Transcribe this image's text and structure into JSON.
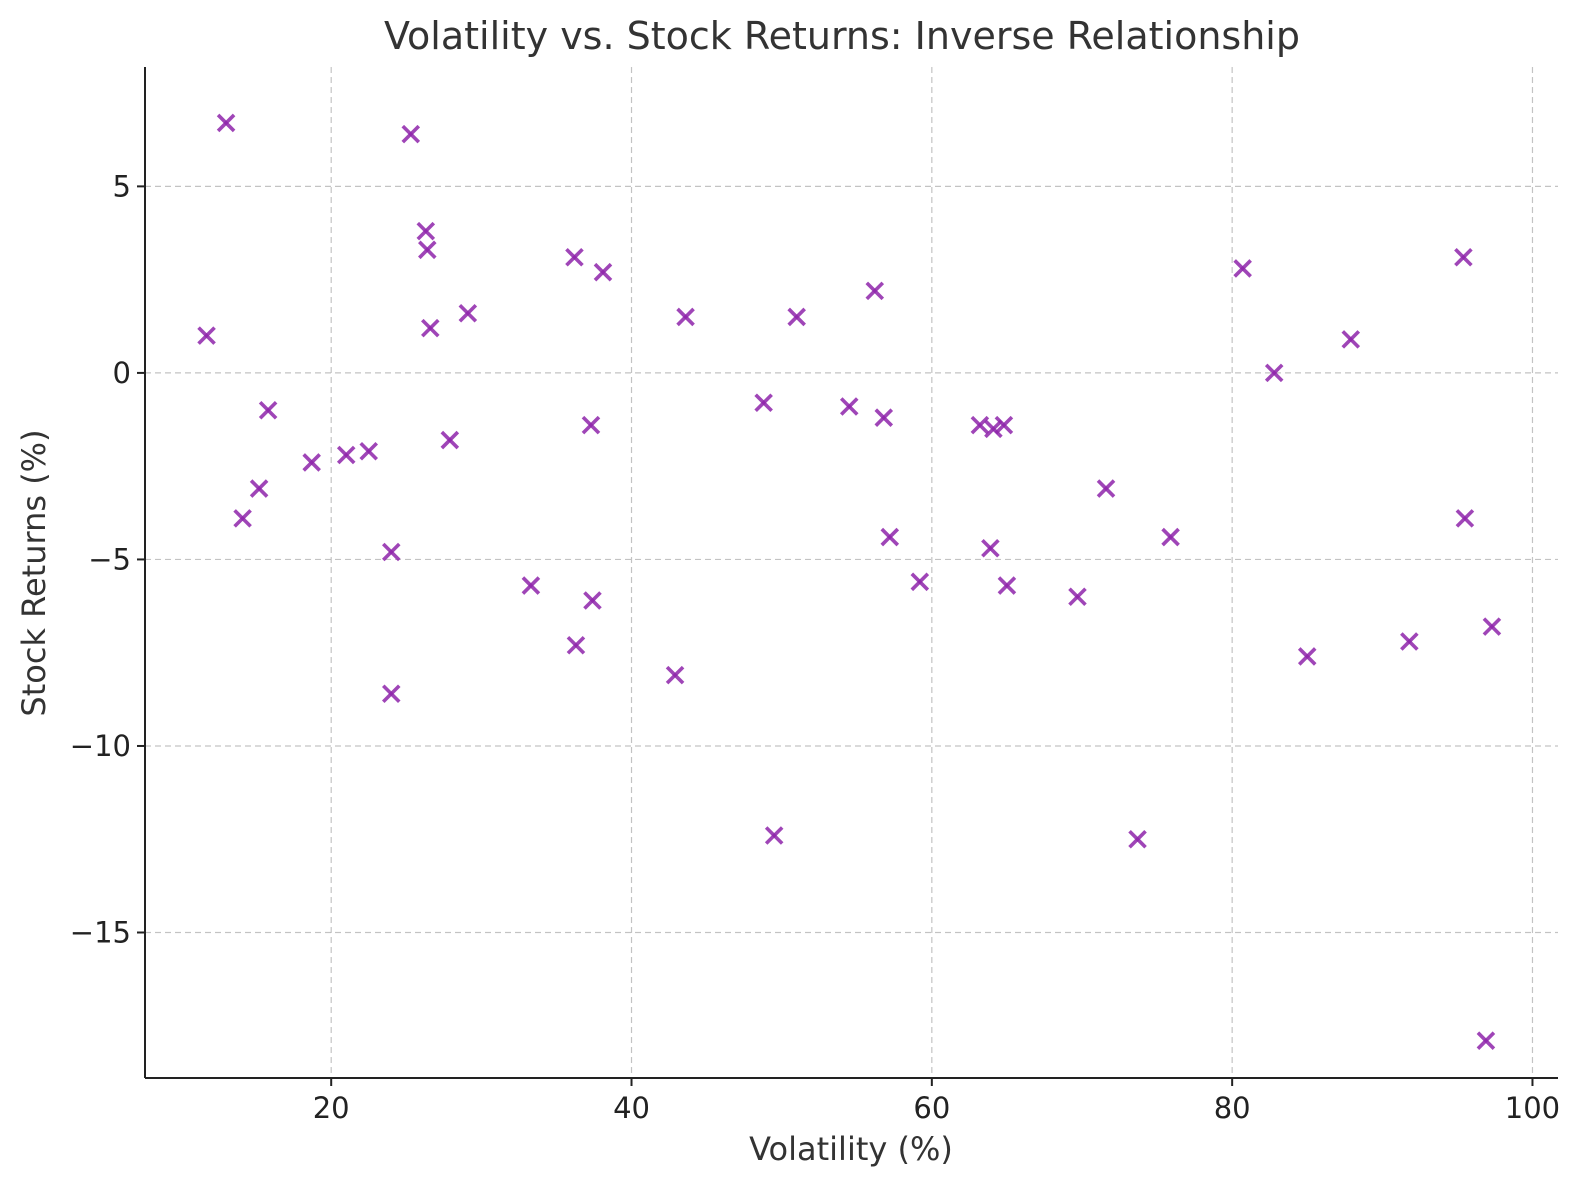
{
  "chart_data": {
    "type": "scatter",
    "title": "Volatility vs. Stock Returns: Inverse Relationship",
    "xlabel": "Volatility (%)",
    "ylabel": "Stock Returns (%)",
    "xlim": [
      7.6,
      101.7
    ],
    "ylim": [
      -18.9,
      8.2
    ],
    "xticks": [
      20,
      40,
      60,
      80,
      100
    ],
    "yticks": [
      5,
      0,
      -5,
      -10,
      -15
    ],
    "xtick_labels": [
      "20",
      "40",
      "60",
      "80",
      "100"
    ],
    "ytick_labels": [
      "5",
      "0",
      "−5",
      "−10",
      "−15"
    ],
    "grid": true,
    "marker": "x",
    "color": "#8e24aa",
    "series": [
      {
        "points": [
          [
            11.7,
            1.0
          ],
          [
            13.0,
            6.7
          ],
          [
            14.1,
            -3.9
          ],
          [
            15.2,
            -3.1
          ],
          [
            15.8,
            -1.0
          ],
          [
            18.7,
            -2.4
          ],
          [
            21.0,
            -2.2
          ],
          [
            22.5,
            -2.1
          ],
          [
            24.0,
            -4.8
          ],
          [
            24.0,
            -8.6
          ],
          [
            25.3,
            6.4
          ],
          [
            26.3,
            3.8
          ],
          [
            26.4,
            3.3
          ],
          [
            26.6,
            1.2
          ],
          [
            27.9,
            -1.8
          ],
          [
            29.1,
            1.6
          ],
          [
            33.3,
            -5.7
          ],
          [
            36.2,
            3.1
          ],
          [
            36.3,
            -7.3
          ],
          [
            37.3,
            -1.4
          ],
          [
            37.4,
            -6.1
          ],
          [
            38.1,
            2.7
          ],
          [
            42.9,
            -8.1
          ],
          [
            43.6,
            1.5
          ],
          [
            48.8,
            -0.8
          ],
          [
            49.5,
            -12.4
          ],
          [
            51.0,
            1.5
          ],
          [
            54.5,
            -0.9
          ],
          [
            56.2,
            2.2
          ],
          [
            56.8,
            -1.2
          ],
          [
            57.2,
            -4.4
          ],
          [
            59.2,
            -5.6
          ],
          [
            63.2,
            -1.4
          ],
          [
            63.9,
            -4.7
          ],
          [
            64.1,
            -1.5
          ],
          [
            64.8,
            -1.4
          ],
          [
            65.0,
            -5.7
          ],
          [
            69.7,
            -6.0
          ],
          [
            71.6,
            -3.1
          ],
          [
            73.7,
            -12.5
          ],
          [
            75.9,
            -4.4
          ],
          [
            80.7,
            2.8
          ],
          [
            82.8,
            0.0
          ],
          [
            85.0,
            -7.6
          ],
          [
            87.9,
            0.9
          ],
          [
            91.8,
            -7.2
          ],
          [
            95.4,
            3.1
          ],
          [
            95.5,
            -3.9
          ],
          [
            96.9,
            -17.9
          ],
          [
            97.3,
            -6.8
          ]
        ]
      }
    ]
  }
}
